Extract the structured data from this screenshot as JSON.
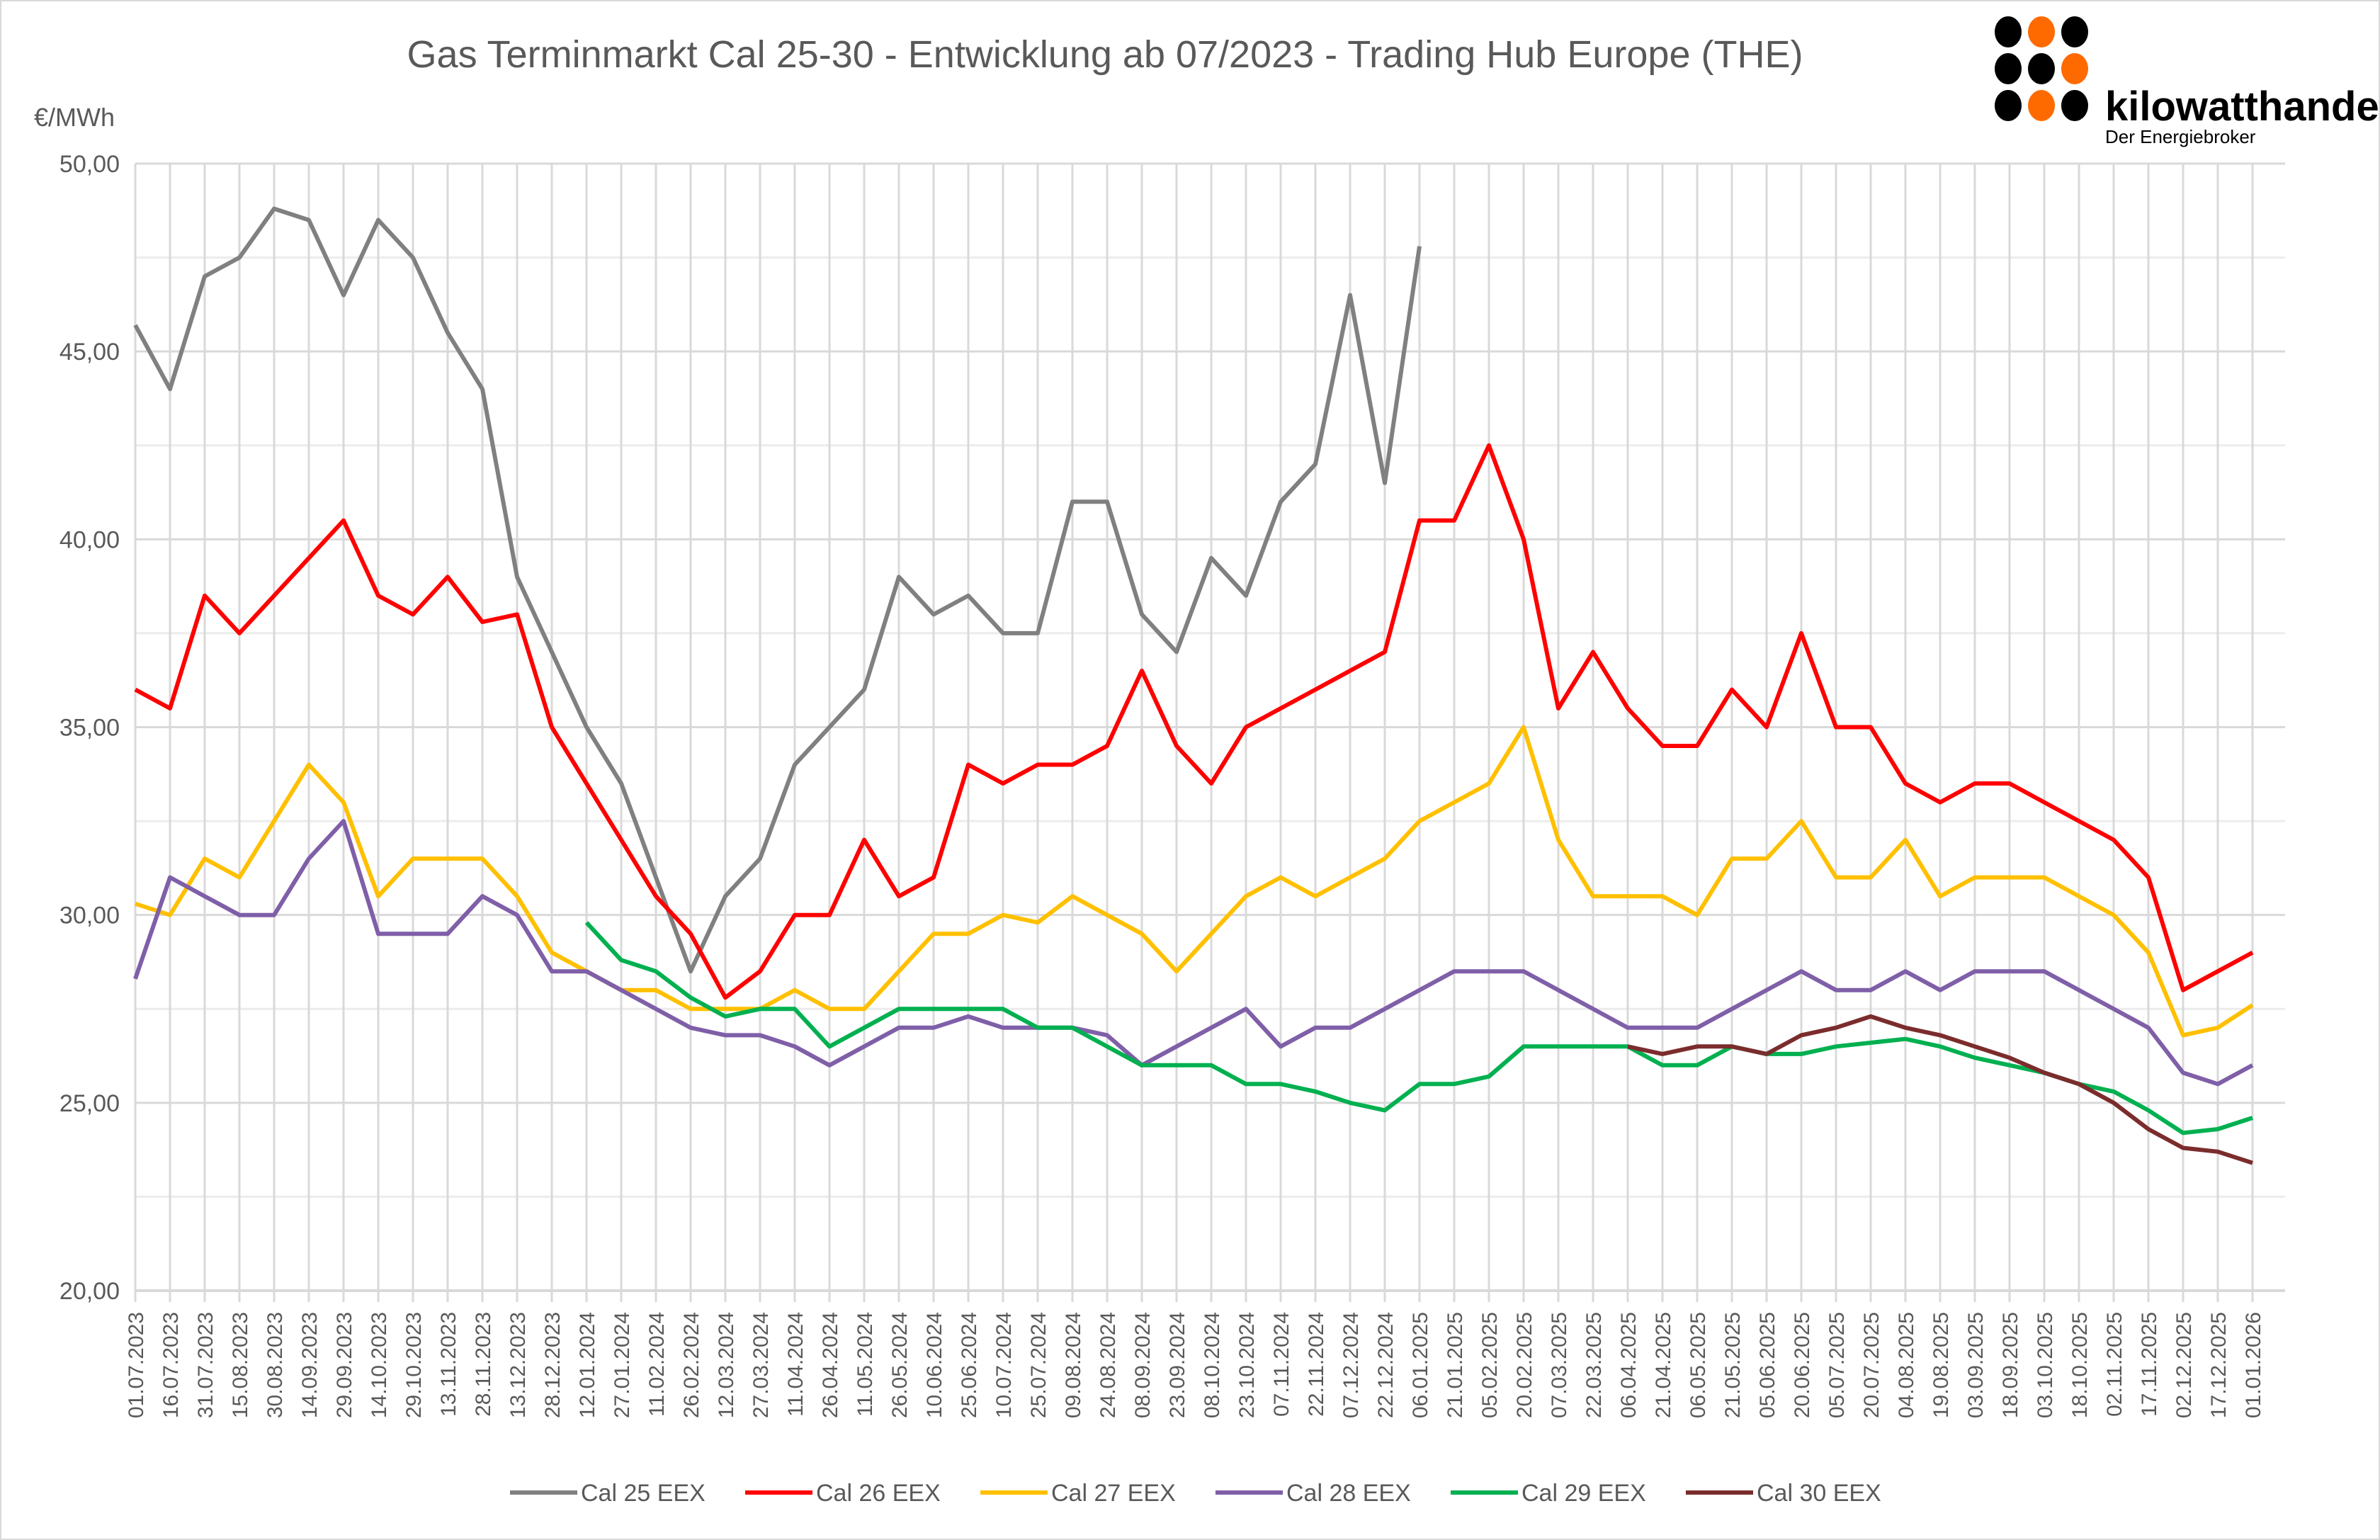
{
  "chart_data": {
    "type": "line",
    "title": "Gas Terminmarkt Cal 25-30 - Entwicklung ab 07/2023 - Trading Hub Europe (THE)",
    "ylabel": "€/MWh",
    "ylim": [
      20,
      50
    ],
    "yticks": [
      "20,00",
      "25,00",
      "30,00",
      "35,00",
      "40,00",
      "45,00",
      "50,00"
    ],
    "grid": true,
    "legend_position": "bottom",
    "x": [
      "01.07.2023",
      "16.07.2023",
      "31.07.2023",
      "15.08.2023",
      "30.08.2023",
      "14.09.2023",
      "29.09.2023",
      "14.10.2023",
      "29.10.2023",
      "13.11.2023",
      "28.11.2023",
      "13.12.2023",
      "28.12.2023",
      "12.01.2024",
      "27.01.2024",
      "11.02.2024",
      "26.02.2024",
      "12.03.2024",
      "27.03.2024",
      "11.04.2024",
      "26.04.2024",
      "11.05.2024",
      "26.05.2024",
      "10.06.2024",
      "25.06.2024",
      "10.07.2024",
      "25.07.2024",
      "09.08.2024",
      "24.08.2024",
      "08.09.2024",
      "23.09.2024",
      "08.10.2024",
      "23.10.2024",
      "07.11.2024",
      "22.11.2024",
      "07.12.2024",
      "22.12.2024",
      "06.01.2025",
      "21.01.2025",
      "05.02.2025",
      "20.02.2025",
      "07.03.2025",
      "22.03.2025",
      "06.04.2025",
      "21.04.2025",
      "06.05.2025",
      "21.05.2025",
      "05.06.2025",
      "20.06.2025",
      "05.07.2025",
      "20.07.2025",
      "04.08.2025",
      "19.08.2025",
      "03.09.2025",
      "18.09.2025",
      "03.10.2025",
      "18.10.2025",
      "02.11.2025",
      "17.11.2025",
      "02.12.2025",
      "17.12.2025",
      "01.01.2026"
    ],
    "series": [
      {
        "name": "Cal 25 EEX",
        "color": "#808080",
        "values": [
          45.7,
          44,
          47,
          47.5,
          48.8,
          48.5,
          46.5,
          48.5,
          47.5,
          45.5,
          44,
          39,
          37,
          35,
          33.5,
          31,
          28.5,
          30.5,
          31.5,
          34,
          35,
          36,
          39,
          38,
          38.5,
          37.5,
          37.5,
          41,
          41,
          38,
          37,
          39.5,
          38.5,
          41,
          42,
          46.5,
          41.5,
          47.8,
          null,
          null,
          null,
          null,
          null,
          null,
          null,
          null,
          null,
          null,
          null,
          null,
          null,
          null,
          null,
          null,
          null,
          null,
          null,
          null,
          null,
          null,
          null,
          null
        ]
      },
      {
        "name": "Cal 26 EEX",
        "color": "#ff0000",
        "values": [
          36,
          35.5,
          38.5,
          37.5,
          38.5,
          39.5,
          40.5,
          38.5,
          38,
          39,
          37.8,
          38,
          35,
          33.5,
          32,
          30.5,
          29.5,
          27.8,
          28.5,
          30,
          30,
          32,
          30.5,
          31,
          34,
          33.5,
          34,
          34,
          34.5,
          36.5,
          34.5,
          33.5,
          35,
          35.5,
          36,
          36.5,
          37,
          40.5,
          40.5,
          42.5,
          40,
          35.5,
          37,
          35.5,
          34.5,
          34.5,
          36,
          35,
          37.5,
          35,
          35,
          33.5,
          33,
          33.5,
          33.5,
          33,
          32.5,
          32,
          31,
          28,
          28.5,
          29
        ]
      },
      {
        "name": "Cal 27 EEX",
        "color": "#ffc000",
        "values": [
          30.3,
          30,
          31.5,
          31,
          32.5,
          34,
          33,
          30.5,
          31.5,
          31.5,
          31.5,
          30.5,
          29,
          28.5,
          28,
          28,
          27.5,
          27.5,
          27.5,
          28,
          27.5,
          27.5,
          28.5,
          29.5,
          29.5,
          30,
          29.8,
          30.5,
          30,
          29.5,
          28.5,
          29.5,
          30.5,
          31,
          30.5,
          31,
          31.5,
          32.5,
          33,
          33.5,
          35,
          32,
          30.5,
          30.5,
          30.5,
          30,
          31.5,
          31.5,
          32.5,
          31,
          31,
          32,
          30.5,
          31,
          31,
          31,
          30.5,
          30,
          29,
          26.8,
          27,
          27.6
        ]
      },
      {
        "name": "Cal 28 EEX",
        "color": "#7f5fa8",
        "values": [
          28.3,
          31,
          30.5,
          30,
          30,
          31.5,
          32.5,
          29.5,
          29.5,
          29.5,
          30.5,
          30,
          28.5,
          28.5,
          28,
          27.5,
          27,
          26.8,
          26.8,
          26.5,
          26,
          26.5,
          27,
          27,
          27.3,
          27,
          27,
          27,
          26.8,
          26,
          26.5,
          27,
          27.5,
          26.5,
          27,
          27,
          27.5,
          28,
          28.5,
          28.5,
          28.5,
          28,
          27.5,
          27,
          27,
          27,
          27.5,
          28,
          28.5,
          28,
          28,
          28.5,
          28,
          28.5,
          28.5,
          28.5,
          28,
          27.5,
          27,
          25.8,
          25.5,
          26
        ]
      },
      {
        "name": "Cal 29 EEX",
        "color": "#00b050",
        "values": [
          null,
          null,
          null,
          null,
          null,
          null,
          null,
          null,
          null,
          null,
          null,
          null,
          null,
          29.8,
          28.8,
          28.5,
          27.8,
          27.3,
          27.5,
          27.5,
          26.5,
          27,
          27.5,
          27.5,
          27.5,
          27.5,
          27,
          27,
          26.5,
          26,
          26,
          26,
          25.5,
          25.5,
          25.3,
          25,
          24.8,
          25.5,
          25.5,
          25.7,
          26.5,
          26.5,
          26.5,
          26.5,
          26,
          26,
          26.5,
          26.3,
          26.3,
          26.5,
          26.6,
          26.7,
          26.5,
          26.2,
          26,
          25.8,
          25.5,
          25.3,
          24.8,
          24.2,
          24.3,
          24.6
        ]
      },
      {
        "name": "Cal 30 EEX",
        "color": "#7b2c2c",
        "values": [
          null,
          null,
          null,
          null,
          null,
          null,
          null,
          null,
          null,
          null,
          null,
          null,
          null,
          null,
          null,
          null,
          null,
          null,
          null,
          null,
          null,
          null,
          null,
          null,
          null,
          null,
          null,
          null,
          null,
          null,
          null,
          null,
          null,
          null,
          null,
          null,
          null,
          null,
          null,
          null,
          null,
          null,
          null,
          26.5,
          26.3,
          26.5,
          26.5,
          26.3,
          26.8,
          27,
          27.3,
          27,
          26.8,
          26.5,
          26.2,
          25.8,
          25.5,
          25,
          24.3,
          23.8,
          23.7,
          23.4
        ]
      }
    ]
  },
  "logo": {
    "name": "kilowatthandel",
    "tagline": "Der Energiebroker",
    "colors": [
      "#000000",
      "#ff6a00"
    ]
  }
}
